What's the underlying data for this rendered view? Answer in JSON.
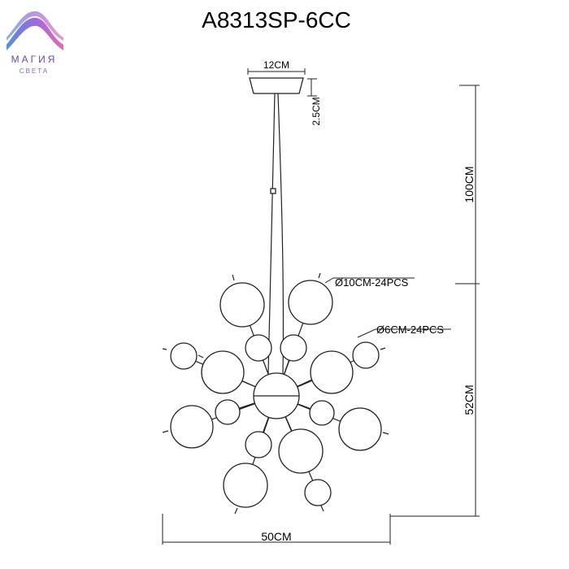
{
  "title": "A8313SP-6CC",
  "logo": {
    "name": "МАГИЯ",
    "subname": "СВЕТА"
  },
  "dimensions": {
    "canopy_width": "12CM",
    "canopy_height": "2.5CM",
    "cord_length": "100CM",
    "body_height": "52CM",
    "body_width": "50CM"
  },
  "callouts": {
    "large_globes": "Ø10CM-24PCS",
    "small_globes": "Ø6CM-24PCS"
  }
}
